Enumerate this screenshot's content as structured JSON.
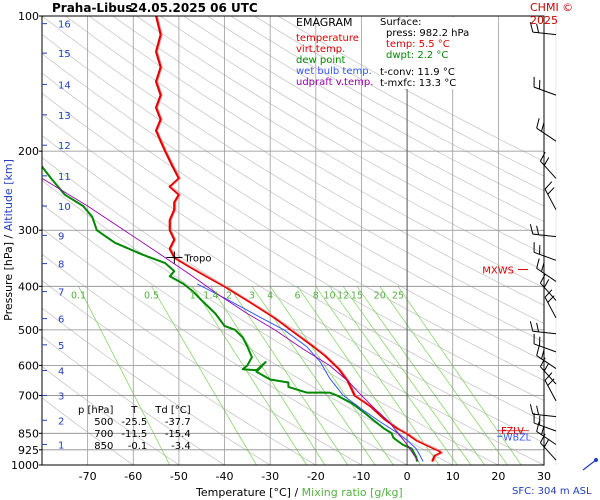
{
  "header": {
    "station": "Praha-Libus",
    "datetime": "24.05.2025 06 UTC",
    "credit": "CHMI © 2025"
  },
  "legend": {
    "title": "EMAGRAM",
    "items": [
      {
        "label": "temperature",
        "color": "#e00000"
      },
      {
        "label": "virt.temp.",
        "color": "#e00000"
      },
      {
        "label": "dew point",
        "color": "#008800"
      },
      {
        "label": "wet bulb temp.",
        "color": "#3355ff"
      },
      {
        "label": "udpraft v.temp.",
        "color": "#9900aa"
      }
    ]
  },
  "surface": {
    "title": "Surface:",
    "press": "press: 982.2 hPa",
    "temp": "temp: 5.5 °C",
    "dwpt": "dwpt: 2.2 °C",
    "tconv": "t-conv: 11.9 °C",
    "tmxfc": "t-mxfc: 13.3 °C"
  },
  "table": {
    "headers": [
      "p [hPa]",
      "T",
      "Td [°C]"
    ],
    "rows": [
      [
        "500",
        "-25.5",
        "-37.7"
      ],
      [
        "700",
        "-11.5",
        "-15.4"
      ],
      [
        "850",
        "-0.1",
        "-3.4"
      ]
    ]
  },
  "axes": {
    "xtitle_temp": "Temperature [°C]",
    "xtitle_sep": "/",
    "xtitle_mix": "Mixing ratio [g/kg]",
    "ytitle_pres": "Pressure [hPa]",
    "ytitle_sep": "/",
    "ytitle_alt": "Altitude [km]"
  },
  "sfc_label": "SFC: 304 m ASL",
  "colors": {
    "temperature": "#e00000",
    "dewpoint": "#008800",
    "wetbulb": "#3355ff",
    "updraft": "#9900aa",
    "mixing": "#88d66a",
    "dry_adiabat": "#9a9a9a",
    "altitude": "#1f3fbf",
    "grid": "#8a8a8a"
  },
  "chart_data": {
    "type": "line",
    "title": "Praha-Libus 24.05.2025 06 UTC",
    "xlabel": "Temperature [°C] / Mixing ratio [g/kg]",
    "ylabel": "Pressure [hPa] / Altitude [km]",
    "xlim": [
      -80,
      30
    ],
    "ylim": [
      1000,
      100
    ],
    "y_scale": "log",
    "x_ticks": [
      -70,
      -60,
      -50,
      -40,
      -30,
      -20,
      -10,
      0,
      10,
      20,
      30
    ],
    "y_ticks": [
      100,
      200,
      300,
      400,
      500,
      600,
      700,
      850,
      925,
      1000
    ],
    "y_tick_labels": [
      "100",
      "200",
      "300",
      "400",
      "500",
      "600",
      "700",
      "850",
      "925",
      "1000"
    ],
    "altitude_ticks": [
      {
        "label": "1",
        "p": 900
      },
      {
        "label": "2",
        "p": 795
      },
      {
        "label": "3",
        "p": 700
      },
      {
        "label": "4",
        "p": 616
      },
      {
        "label": "5",
        "p": 540
      },
      {
        "label": "6",
        "p": 472
      },
      {
        "label": "7",
        "p": 411
      },
      {
        "label": "8",
        "p": 356
      },
      {
        "label": "9",
        "p": 308
      },
      {
        "label": "10",
        "p": 265
      },
      {
        "label": "11",
        "p": 227
      },
      {
        "label": "12",
        "p": 194
      },
      {
        "label": "13",
        "p": 166
      },
      {
        "label": "14",
        "p": 142
      },
      {
        "label": "15",
        "p": 121
      },
      {
        "label": "16",
        "p": 104
      }
    ],
    "mixing_ratio_lines": [
      {
        "label": "0.1",
        "t_at_400": -72,
        "t_at_1000": -52
      },
      {
        "label": "0.5",
        "t_at_400": -56,
        "t_at_1000": -33
      },
      {
        "label": "1",
        "t_at_400": -47,
        "t_at_1000": -22
      },
      {
        "label": "1.4",
        "t_at_400": -43,
        "t_at_1000": -18
      },
      {
        "label": "2",
        "t_at_400": -39,
        "t_at_1000": -13
      },
      {
        "label": "3",
        "t_at_400": -34,
        "t_at_1000": -7
      },
      {
        "label": "4",
        "t_at_400": -30,
        "t_at_1000": -3
      },
      {
        "label": "6",
        "t_at_400": -24,
        "t_at_1000": 3
      },
      {
        "label": "8",
        "t_at_400": -20,
        "t_at_1000": 7
      },
      {
        "label": "10",
        "t_at_400": -17,
        "t_at_1000": 11
      },
      {
        "label": "12",
        "t_at_400": -14,
        "t_at_1000": 14
      },
      {
        "label": "15",
        "t_at_400": -11,
        "t_at_1000": 17
      },
      {
        "label": "20",
        "t_at_400": -6,
        "t_at_1000": 22
      },
      {
        "label": "25",
        "t_at_400": -2,
        "t_at_1000": 25
      }
    ],
    "series": [
      {
        "name": "temperature",
        "points": [
          [
            -55,
            100
          ],
          [
            -54,
            110
          ],
          [
            -55,
            120
          ],
          [
            -54,
            130
          ],
          [
            -55,
            140
          ],
          [
            -54,
            150
          ],
          [
            -55,
            160
          ],
          [
            -54,
            170
          ],
          [
            -55,
            180
          ],
          [
            -54,
            190
          ],
          [
            -53,
            200
          ],
          [
            -52,
            210
          ],
          [
            -51,
            220
          ],
          [
            -50,
            230
          ],
          [
            -52,
            240
          ],
          [
            -50,
            250
          ],
          [
            -51,
            260
          ],
          [
            -51,
            270
          ],
          [
            -52,
            285
          ],
          [
            -52,
            300
          ],
          [
            -51,
            315
          ],
          [
            -52,
            330
          ],
          [
            -51,
            345
          ],
          [
            -48,
            360
          ],
          [
            -44,
            380
          ],
          [
            -40,
            400
          ],
          [
            -35,
            430
          ],
          [
            -29,
            470
          ],
          [
            -25.5,
            500
          ],
          [
            -21,
            540
          ],
          [
            -18,
            570
          ],
          [
            -15,
            610
          ],
          [
            -13,
            650
          ],
          [
            -11.5,
            700
          ],
          [
            -8,
            740
          ],
          [
            -5,
            790
          ],
          [
            -2,
            830
          ],
          [
            -0.1,
            850
          ],
          [
            2,
            880
          ],
          [
            4,
            900
          ],
          [
            6,
            920
          ],
          [
            7,
            930
          ],
          [
            7.5,
            940
          ],
          [
            6,
            955
          ],
          [
            5.5,
            982
          ]
        ]
      },
      {
        "name": "dew point",
        "points": [
          [
            -81,
            210
          ],
          [
            -78,
            230
          ],
          [
            -75,
            250
          ],
          [
            -71,
            265
          ],
          [
            -69,
            280
          ],
          [
            -68,
            300
          ],
          [
            -66,
            310
          ],
          [
            -64,
            320
          ],
          [
            -58,
            340
          ],
          [
            -53,
            355
          ],
          [
            -51,
            370
          ],
          [
            -52,
            380
          ],
          [
            -49,
            395
          ],
          [
            -47,
            410
          ],
          [
            -45,
            430
          ],
          [
            -42,
            460
          ],
          [
            -40,
            490
          ],
          [
            -37.7,
            500
          ],
          [
            -36,
            520
          ],
          [
            -35,
            545
          ],
          [
            -34,
            575
          ],
          [
            -35,
            600
          ],
          [
            -36,
            612
          ],
          [
            -33,
            615
          ],
          [
            -31,
            590
          ],
          [
            -33,
            620
          ],
          [
            -30,
            645
          ],
          [
            -26,
            655
          ],
          [
            -26,
            670
          ],
          [
            -22,
            690
          ],
          [
            -17,
            690
          ],
          [
            -15.4,
            700
          ],
          [
            -12,
            730
          ],
          [
            -9,
            770
          ],
          [
            -7,
            800
          ],
          [
            -5,
            830
          ],
          [
            -3.4,
            850
          ],
          [
            -3,
            870
          ],
          [
            -1,
            900
          ],
          [
            1,
            920
          ],
          [
            2,
            960
          ],
          [
            2.2,
            982
          ]
        ]
      },
      {
        "name": "wet bulb temp.",
        "points": [
          [
            -46,
            395
          ],
          [
            -39,
            430
          ],
          [
            -32,
            470
          ],
          [
            -27,
            500
          ],
          [
            -22,
            545
          ],
          [
            -19,
            590
          ],
          [
            -17,
            640
          ],
          [
            -14,
            700
          ],
          [
            -10,
            750
          ],
          [
            -6,
            800
          ],
          [
            -2,
            850
          ],
          [
            0,
            880
          ],
          [
            2,
            920
          ],
          [
            3,
            960
          ],
          [
            3.5,
            982
          ]
        ]
      },
      {
        "name": "udpraft v.temp.",
        "points": [
          [
            -80,
            230
          ],
          [
            -70,
            265
          ],
          [
            -62,
            300
          ],
          [
            -54,
            340
          ],
          [
            -47,
            380
          ],
          [
            -41,
            420
          ],
          [
            -35,
            460
          ],
          [
            -29,
            500
          ],
          [
            -23,
            550
          ],
          [
            -17,
            600
          ],
          [
            -13,
            650
          ],
          [
            -10,
            700
          ],
          [
            -7,
            750
          ],
          [
            -4,
            800
          ],
          [
            -2,
            850
          ],
          [
            0,
            900
          ],
          [
            1.5,
            950
          ],
          [
            2.5,
            982
          ]
        ]
      }
    ],
    "annotations": [
      {
        "label": "Tropo",
        "t": -51,
        "p": 345
      },
      {
        "label": "MXWS",
        "t": 30,
        "p": 367
      },
      {
        "label": "FZLV",
        "t": 25,
        "p": 852
      },
      {
        "label": "WBZL",
        "t": 25,
        "p": 872
      }
    ],
    "wind_barbs_hpa": [
      110,
      150,
      190,
      230,
      270,
      310,
      350,
      390,
      430,
      470,
      510,
      560,
      610,
      660,
      720,
      780,
      840,
      900,
      975
    ],
    "grid": true
  }
}
